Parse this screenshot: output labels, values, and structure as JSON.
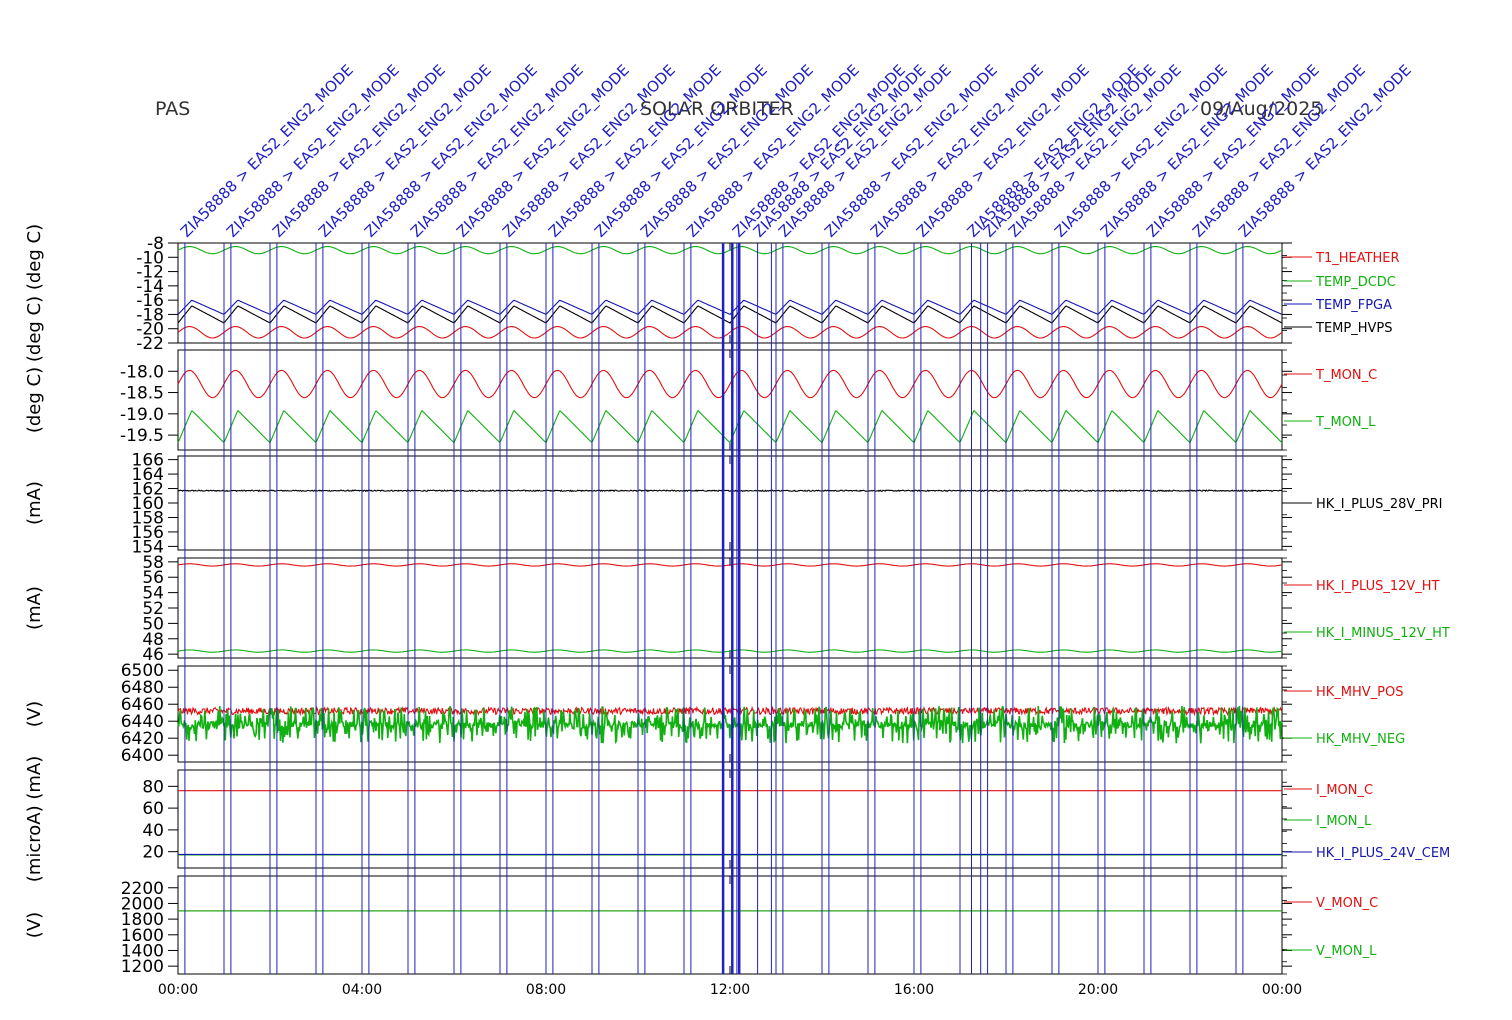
{
  "header": {
    "left": "PAS",
    "center": "SOLAR ORBITER",
    "right": "09/Aug/2025"
  },
  "colors": {
    "red": "#e01010",
    "green": "#10b010",
    "blue": "#1515b0",
    "black": "#000000",
    "event": "#2020c0"
  },
  "events": {
    "items": [
      {
        "t": 0.15,
        "label": "ZIA58888 > EAS2_ENG2_MODE"
      },
      {
        "t": 1.15,
        "label": "ZIA58888 > EAS2_ENG2_MODE"
      },
      {
        "t": 2.15,
        "label": "ZIA58888 > EAS2_ENG2_MODE"
      },
      {
        "t": 3.15,
        "label": "ZIA58888 > EAS2_ENG2_MODE"
      },
      {
        "t": 4.15,
        "label": "ZIA58888 > EAS2_ENG2_MODE"
      },
      {
        "t": 5.15,
        "label": "ZIA58888 > EAS2_ENG2_MODE"
      },
      {
        "t": 6.15,
        "label": "ZIA58888 > EAS2_ENG2_MODE"
      },
      {
        "t": 7.15,
        "label": "ZIA58888 > EAS2_ENG2_MODE"
      },
      {
        "t": 8.15,
        "label": "ZIA58888 > EAS2_ENG2_MODE"
      },
      {
        "t": 9.15,
        "label": "ZIA58888 > EAS2_ENG2_MODE"
      },
      {
        "t": 10.15,
        "label": "ZIA58888 > EAS2_ENG2_MODE"
      },
      {
        "t": 11.15,
        "label": "ZIA58888 > EAS2_ENG2_MODE"
      },
      {
        "t": 12.15,
        "label": "ZIA58888 > EAS2_ENG2_MODE"
      },
      {
        "t": 12.6,
        "label": "ZIA58888 > EAS2_ENG2_MODE"
      },
      {
        "t": 13.15,
        "label": "ZIA58888 > EAS2_ENG2_MODE"
      },
      {
        "t": 14.15,
        "label": "ZIA58888 > EAS2_ENG2_MODE"
      },
      {
        "t": 15.15,
        "label": "ZIA58888 > EAS2_ENG2_MODE"
      },
      {
        "t": 16.15,
        "label": "ZIA58888 > EAS2_ENG2_MODE"
      },
      {
        "t": 17.25,
        "label": "ZIA58888 > EAS2_ENG2_MODE"
      },
      {
        "t": 17.6,
        "label": "ZIA58888 > EAS2_ENG2_MODE"
      },
      {
        "t": 18.15,
        "label": "ZIA58888 > EAS2_ENG2_MODE"
      },
      {
        "t": 19.15,
        "label": "ZIA58888 > EAS2_ENG2_MODE"
      },
      {
        "t": 20.15,
        "label": "ZIA58888 > EAS2_ENG2_MODE"
      },
      {
        "t": 21.15,
        "label": "ZIA58888 > EAS2_ENG2_MODE"
      },
      {
        "t": 22.15,
        "label": "ZIA58888 > EAS2_ENG2_MODE"
      },
      {
        "t": 23.15,
        "label": "ZIA58888 > EAS2_ENG2_MODE"
      }
    ],
    "plain_lines": [
      1.0,
      2.0,
      3.0,
      4.0,
      5.0,
      6.0,
      7.0,
      8.0,
      9.0,
      10.0,
      11.0,
      12.9,
      13.0,
      14.0,
      15.0,
      16.0,
      17.0,
      17.45,
      18.0,
      19.0,
      20.0,
      21.0,
      22.0,
      23.0
    ],
    "thick_lines": [
      11.85,
      12.05,
      12.2
    ]
  },
  "chart_data": {
    "type": "line",
    "x_unit": "hours",
    "xlim": [
      0,
      24
    ],
    "xticks": [
      0,
      4,
      8,
      12,
      16,
      20,
      24
    ],
    "xtick_labels": [
      "00:00",
      "04:00",
      "08:00",
      "12:00",
      "16:00",
      "20:00",
      "00:00"
    ],
    "panels": [
      {
        "ylabel": "(deg C) (deg C)",
        "ylim": [
          -22,
          -8
        ],
        "yticks": [
          -8,
          -10,
          -12,
          -14,
          -16,
          -18,
          -20,
          -22
        ],
        "ytick_labels": [
          "-8",
          "-10",
          "-12",
          "-14",
          "-16",
          "-18",
          "-20",
          "-22"
        ],
        "series": [
          {
            "name": "T1_HEATHER",
            "color": "#e01010",
            "mean": -20.5,
            "amp": 0.8,
            "period": 1.0,
            "kind": "sin"
          },
          {
            "name": "TEMP_DCDC",
            "color": "#10b010",
            "mean": -9.0,
            "amp": 0.5,
            "period": 1.0,
            "kind": "sin"
          },
          {
            "name": "TEMP_FPGA",
            "color": "#1515b0",
            "mean": -17.0,
            "amp": 1.0,
            "period": 1.0,
            "kind": "saw"
          },
          {
            "name": "TEMP_HVPS",
            "color": "#000000",
            "mean": -18.0,
            "amp": 1.2,
            "period": 1.0,
            "kind": "saw"
          }
        ]
      },
      {
        "ylabel": "(deg C)",
        "ylim": [
          -19.85,
          -17.5
        ],
        "yticks": [
          -18.0,
          -18.5,
          -19.0,
          -19.5
        ],
        "ytick_labels": [
          "-18.0",
          "-18.5",
          "-19.0",
          "-19.5"
        ],
        "series": [
          {
            "name": "T_MON_C",
            "color": "#e01010",
            "mean": -18.3,
            "amp": 0.32,
            "period": 1.0,
            "kind": "sin"
          },
          {
            "name": "T_MON_L",
            "color": "#10b010",
            "mean": -19.3,
            "amp": 0.38,
            "period": 1.0,
            "kind": "saw"
          }
        ]
      },
      {
        "ylabel": "(mA)",
        "ylim": [
          153.5,
          166.5
        ],
        "yticks": [
          154,
          156,
          158,
          160,
          162,
          164,
          166
        ],
        "ytick_labels": [
          "154",
          "156",
          "158",
          "160",
          "162",
          "164",
          "166"
        ],
        "series": [
          {
            "name": "HK_I_PLUS_28V_PRI",
            "color": "#000000",
            "mean": 161.7,
            "amp": 0.08,
            "period": 0.2,
            "kind": "noise"
          }
        ]
      },
      {
        "ylabel": "(mA)",
        "ylim": [
          45.5,
          58.5
        ],
        "yticks": [
          46,
          48,
          50,
          52,
          54,
          56,
          58
        ],
        "ytick_labels": [
          "46",
          "48",
          "50",
          "52",
          "54",
          "56",
          "58"
        ],
        "series": [
          {
            "name": "HK_I_PLUS_12V_HT",
            "color": "#e01010",
            "mean": 57.6,
            "amp": 0.15,
            "period": 1.0,
            "kind": "sin"
          },
          {
            "name": "HK_I_MINUS_12V_HT",
            "color": "#10b010",
            "mean": 46.4,
            "amp": 0.15,
            "period": 1.0,
            "kind": "sin"
          }
        ]
      },
      {
        "ylabel": "(V)",
        "ylim": [
          6392,
          6505
        ],
        "yticks": [
          6400,
          6420,
          6440,
          6460,
          6480,
          6500
        ],
        "ytick_labels": [
          "6400",
          "6420",
          "6440",
          "6460",
          "6480",
          "6500"
        ],
        "series": [
          {
            "name": "HK_MHV_POS",
            "color": "#e01010",
            "mean": 6452,
            "amp": 4,
            "period": 0.02,
            "kind": "noise"
          },
          {
            "name": "HK_MHV_NEG",
            "color": "#10b010",
            "mean": 6436,
            "amp": 22,
            "period": 0.02,
            "kind": "spiky"
          }
        ]
      },
      {
        "ylabel": "(microA) (mA)",
        "ylim": [
          5,
          95
        ],
        "yticks": [
          20,
          40,
          60,
          80
        ],
        "ytick_labels": [
          "20",
          "40",
          "60",
          "80"
        ],
        "series": [
          {
            "name": "I_MON_C",
            "color": "#e01010",
            "mean": 76,
            "amp": 0,
            "period": 1.0,
            "kind": "flat"
          },
          {
            "name": "I_MON_L",
            "color": "#10b010",
            "mean": 17,
            "amp": 0,
            "period": 1.0,
            "kind": "flat"
          },
          {
            "name": "HK_I_PLUS_24V_CEM",
            "color": "#1515b0",
            "mean": 17.5,
            "amp": 0,
            "period": 1.0,
            "kind": "flat"
          }
        ]
      },
      {
        "ylabel": "(V)",
        "ylim": [
          1100,
          2350
        ],
        "yticks": [
          1200,
          1400,
          1600,
          1800,
          2000,
          2200
        ],
        "ytick_labels": [
          "1200",
          "1400",
          "1600",
          "1800",
          "2000",
          "2200"
        ],
        "series": [
          {
            "name": "V_MON_C",
            "color": "#e01010",
            "mean": 1905,
            "amp": 0,
            "period": 1.0,
            "kind": "flat"
          },
          {
            "name": "V_MON_L",
            "color": "#10b010",
            "mean": 1905,
            "amp": 0,
            "period": 1.0,
            "kind": "flat"
          }
        ]
      }
    ]
  }
}
